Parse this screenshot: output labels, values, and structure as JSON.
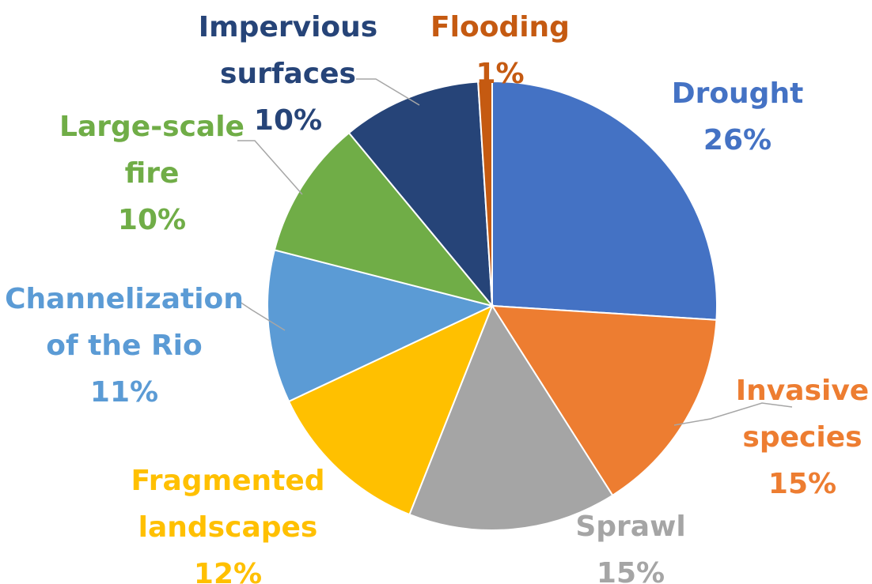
{
  "chart_data": {
    "type": "pie",
    "title": "",
    "slices": [
      {
        "name": "Drought",
        "value": 26,
        "color": "#4472c4",
        "lines": [
          "Drought",
          "26%"
        ]
      },
      {
        "name": "Invasive species",
        "value": 15,
        "color": "#ed7d31",
        "lines": [
          "Invasive",
          "species",
          "15%"
        ]
      },
      {
        "name": "Sprawl",
        "value": 15,
        "color": "#a5a5a5",
        "lines": [
          "Sprawl",
          "15%"
        ]
      },
      {
        "name": "Fragmented landscapes",
        "value": 12,
        "color": "#ffc000",
        "lines": [
          "Fragmented",
          "landscapes",
          "12%"
        ]
      },
      {
        "name": "Channelization of the Rio",
        "value": 11,
        "color": "#5b9bd5",
        "lines": [
          "Channelization",
          "of the Rio",
          "11%"
        ]
      },
      {
        "name": "Large-scale fire",
        "value": 10,
        "color": "#70ad47",
        "lines": [
          "Large-scale",
          "fire",
          "10%"
        ]
      },
      {
        "name": "Impervious surfaces",
        "value": 10,
        "color": "#264478",
        "lines": [
          "Impervious",
          "surfaces",
          "10%"
        ]
      },
      {
        "name": "Flooding",
        "value": 1,
        "color": "#c55a11",
        "lines": [
          "Flooding",
          "1%"
        ]
      }
    ]
  }
}
